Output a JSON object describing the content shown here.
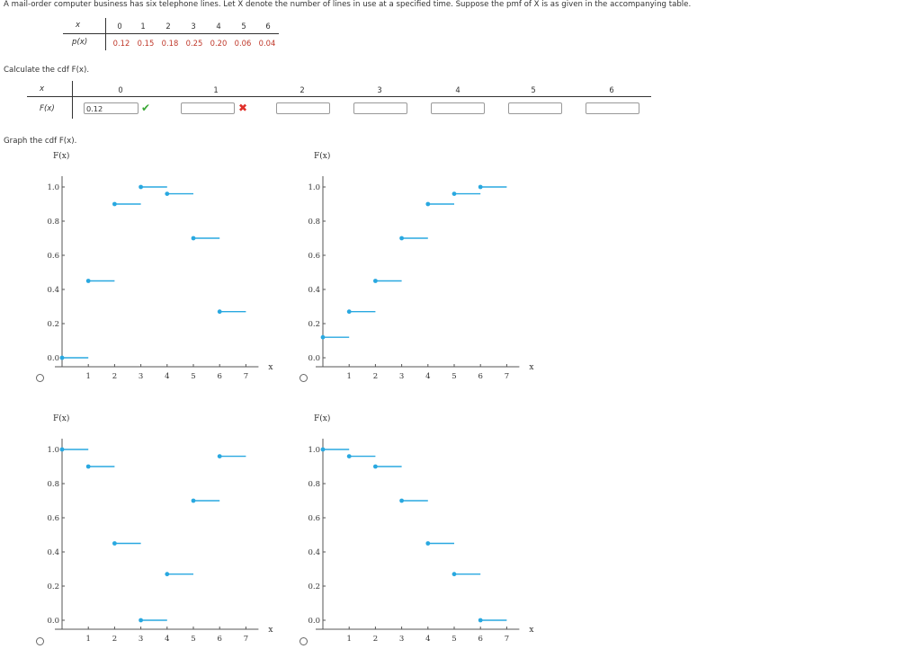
{
  "question": "A mail-order computer business has six telephone lines. Let X denote the number of lines in use at a specified time. Suppose the pmf of X is as given in the accompanying table.",
  "pmf_table": {
    "x_label": "x",
    "p_label": "p(x)",
    "x_values": [
      "0",
      "1",
      "2",
      "3",
      "4",
      "5",
      "6"
    ],
    "p_values": [
      "0.12",
      "0.15",
      "0.18",
      "0.25",
      "0.20",
      "0.06",
      "0.04"
    ]
  },
  "cdf_prompt": "Calculate the cdf F(x).",
  "cdf_table": {
    "x_label": "x",
    "F_label": "F(x)",
    "x_values": [
      "0",
      "1",
      "2",
      "3",
      "4",
      "5",
      "6"
    ],
    "inputs": [
      "0.12",
      "",
      "",
      "",
      "",
      "",
      ""
    ],
    "status": [
      "correct",
      "incorrect",
      "",
      "",
      "",
      "",
      ""
    ]
  },
  "graph_prompt": "Graph the cdf F(x).",
  "graph_common": {
    "y_axis_label": "F(x)",
    "x_axis_label": "x",
    "y_ticks": [
      "1.0",
      "0.8",
      "0.6",
      "0.4",
      "0.2",
      "0.0"
    ],
    "x_ticks": [
      "1",
      "2",
      "3",
      "4",
      "5",
      "6",
      "7"
    ],
    "accent_color": "#29a8e0"
  },
  "graphs": [
    {
      "id": "option-a",
      "segments": [
        {
          "x": 0,
          "y": 0.0
        },
        {
          "x": 1,
          "y": 0.45
        },
        {
          "x": 2,
          "y": 0.9
        },
        {
          "x": 3,
          "y": 1.0
        },
        {
          "x": 4,
          "y": 0.96
        },
        {
          "x": 5,
          "y": 0.7
        },
        {
          "x": 6,
          "y": 0.27
        }
      ]
    },
    {
      "id": "option-b",
      "segments": [
        {
          "x": 0,
          "y": 0.12
        },
        {
          "x": 1,
          "y": 0.27
        },
        {
          "x": 2,
          "y": 0.45
        },
        {
          "x": 3,
          "y": 0.7
        },
        {
          "x": 4,
          "y": 0.9
        },
        {
          "x": 5,
          "y": 0.96
        },
        {
          "x": 6,
          "y": 1.0
        }
      ]
    },
    {
      "id": "option-c",
      "segments": [
        {
          "x": 0,
          "y": 1.0
        },
        {
          "x": 1,
          "y": 0.9
        },
        {
          "x": 2,
          "y": 0.45
        },
        {
          "x": 3,
          "y": 0.0
        },
        {
          "x": 4,
          "y": 0.27
        },
        {
          "x": 5,
          "y": 0.7
        },
        {
          "x": 6,
          "y": 0.96
        }
      ]
    },
    {
      "id": "option-d",
      "segments": [
        {
          "x": 0,
          "y": 1.0
        },
        {
          "x": 1,
          "y": 0.96
        },
        {
          "x": 2,
          "y": 0.9
        },
        {
          "x": 3,
          "y": 0.7
        },
        {
          "x": 4,
          "y": 0.45
        },
        {
          "x": 5,
          "y": 0.27
        },
        {
          "x": 6,
          "y": 0.0
        }
      ]
    }
  ]
}
